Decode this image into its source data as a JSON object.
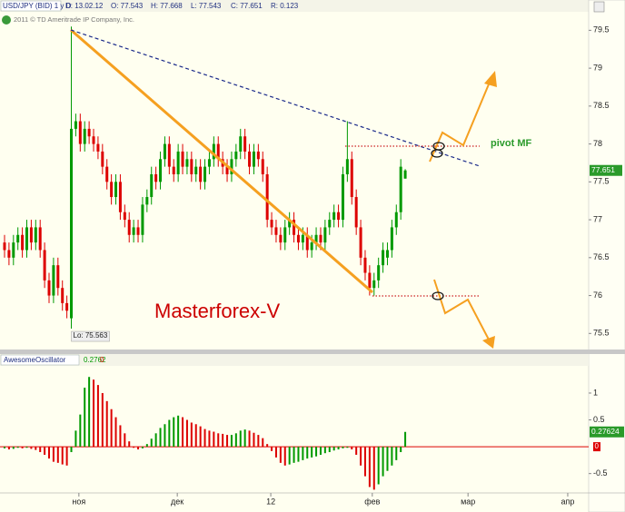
{
  "chart_data": [
    {
      "type": "candlestick",
      "header": [
        "USD/JPY (BID) 1 y D",
        "D: 13.02.12",
        "O: 77.543",
        "H: 77.668",
        "L: 77.543",
        "C: 77.651",
        "R: 0.123"
      ],
      "copyright": "2011 © TD Ameritrade IP Company, Inc.",
      "annotations": [
        "Masterforex-V",
        "pivot MF",
        "Lo: 75.563"
      ],
      "last_label": "77.651",
      "up_color": "#009900",
      "down_color": "#dd0000",
      "xlim": [
        -1.02,
        131.2
      ],
      "ylim": [
        75.3,
        79.72
      ],
      "yticks": [
        75.5,
        76,
        76.5,
        77,
        77.5,
        78,
        78.5,
        79,
        79.5
      ],
      "x": [
        0,
        1,
        2,
        3,
        4,
        5,
        6,
        7,
        8,
        9,
        10,
        11,
        12,
        13,
        14,
        15,
        16,
        17,
        18,
        19,
        20,
        21,
        22,
        23,
        24,
        25,
        26,
        27,
        28,
        29,
        30,
        31,
        32,
        33,
        34,
        35,
        36,
        37,
        38,
        39,
        40,
        41,
        42,
        43,
        44,
        45,
        46,
        47,
        48,
        49,
        50,
        51,
        52,
        53,
        54,
        55,
        56,
        57,
        58,
        59,
        60,
        61,
        62,
        63,
        64,
        65,
        66,
        67,
        68,
        69,
        70,
        71,
        72,
        73,
        74,
        75,
        76,
        77,
        78,
        79,
        80,
        81,
        82,
        83,
        84,
        85,
        86,
        87,
        88,
        89,
        90
      ],
      "open": [
        76.7,
        76.6,
        76.5,
        76.7,
        76.8,
        76.6,
        76.9,
        76.7,
        76.9,
        76.6,
        76.2,
        76.0,
        76.4,
        76.1,
        75.9,
        75.7,
        78.2,
        78.3,
        78.0,
        78.2,
        78.1,
        78.0,
        77.9,
        77.7,
        77.5,
        77.3,
        77.5,
        77.1,
        77.0,
        76.8,
        76.9,
        76.8,
        77.2,
        77.3,
        77.6,
        77.5,
        77.8,
        78.0,
        77.7,
        77.6,
        77.9,
        77.7,
        77.8,
        77.6,
        77.7,
        77.5,
        77.7,
        77.8,
        78.0,
        77.8,
        77.7,
        77.6,
        77.8,
        77.9,
        78.1,
        77.9,
        77.7,
        77.9,
        77.8,
        77.6,
        77.0,
        76.9,
        76.8,
        76.7,
        76.9,
        77.0,
        76.8,
        76.7,
        76.8,
        76.6,
        76.7,
        76.8,
        76.7,
        76.9,
        77.0,
        77.1,
        77.0,
        77.6,
        77.8,
        77.3,
        76.9,
        76.5,
        76.3,
        76.1,
        76.2,
        76.4,
        76.5,
        76.6,
        76.9,
        77.1,
        77.543
      ],
      "high": [
        76.8,
        76.7,
        76.8,
        76.9,
        76.9,
        77.0,
        77.0,
        77.0,
        77.0,
        76.7,
        76.3,
        76.5,
        76.5,
        76.2,
        76.0,
        79.55,
        78.4,
        78.4,
        78.3,
        78.3,
        78.2,
        78.1,
        78.0,
        77.8,
        77.6,
        77.6,
        77.6,
        77.2,
        77.1,
        77.0,
        77.0,
        77.3,
        77.4,
        77.7,
        77.7,
        77.9,
        78.1,
        78.1,
        77.8,
        78.0,
        78.0,
        77.9,
        77.9,
        77.8,
        77.8,
        77.8,
        77.9,
        78.1,
        78.1,
        77.9,
        77.8,
        77.9,
        78.0,
        78.2,
        78.2,
        78.0,
        78.0,
        78.0,
        77.9,
        77.7,
        77.1,
        77.0,
        76.9,
        77.0,
        77.1,
        77.1,
        76.9,
        76.9,
        76.9,
        76.8,
        76.9,
        76.9,
        77.0,
        77.1,
        77.2,
        77.2,
        77.7,
        78.3,
        77.9,
        77.4,
        77.0,
        76.6,
        76.4,
        76.3,
        76.5,
        76.7,
        76.7,
        77.0,
        77.2,
        77.8,
        77.668
      ],
      "low": [
        76.5,
        76.4,
        76.4,
        76.6,
        76.5,
        76.5,
        76.6,
        76.6,
        76.5,
        76.1,
        75.9,
        75.9,
        76.0,
        75.8,
        75.7,
        75.563,
        78.1,
        77.9,
        77.9,
        78.0,
        77.9,
        77.8,
        77.6,
        77.4,
        77.2,
        77.2,
        77.0,
        76.9,
        76.7,
        76.7,
        76.7,
        76.7,
        77.1,
        77.2,
        77.4,
        77.4,
        77.7,
        77.6,
        77.5,
        77.5,
        77.6,
        77.6,
        77.5,
        77.5,
        77.4,
        77.4,
        77.6,
        77.7,
        77.7,
        77.6,
        77.5,
        77.5,
        77.7,
        77.8,
        77.8,
        77.6,
        77.6,
        77.7,
        77.5,
        76.9,
        76.8,
        76.7,
        76.6,
        76.6,
        76.8,
        76.7,
        76.6,
        76.6,
        76.5,
        76.5,
        76.6,
        76.6,
        76.6,
        76.8,
        76.9,
        76.9,
        76.9,
        77.5,
        77.2,
        76.8,
        76.4,
        76.2,
        76.0,
        76.0,
        76.1,
        76.3,
        76.4,
        76.5,
        76.8,
        77.0,
        77.543
      ],
      "close": [
        76.6,
        76.5,
        76.7,
        76.8,
        76.6,
        76.9,
        76.7,
        76.9,
        76.6,
        76.2,
        76.0,
        76.4,
        76.1,
        75.9,
        75.8,
        78.2,
        78.3,
        78.0,
        78.2,
        78.1,
        78.0,
        77.9,
        77.7,
        77.5,
        77.3,
        77.5,
        77.1,
        77.0,
        76.8,
        76.9,
        76.8,
        77.2,
        77.3,
        77.6,
        77.5,
        77.8,
        78.0,
        77.7,
        77.6,
        77.9,
        77.7,
        77.8,
        77.6,
        77.7,
        77.5,
        77.7,
        77.8,
        78.0,
        77.8,
        77.7,
        77.6,
        77.8,
        77.9,
        78.1,
        77.9,
        77.7,
        77.9,
        77.8,
        77.6,
        77.0,
        76.9,
        76.8,
        76.7,
        76.9,
        77.0,
        76.8,
        76.7,
        76.8,
        76.6,
        76.7,
        76.8,
        76.7,
        76.9,
        77.0,
        77.1,
        77.0,
        77.6,
        77.8,
        77.3,
        76.9,
        76.5,
        76.3,
        76.1,
        76.2,
        76.4,
        76.6,
        76.6,
        76.9,
        77.1,
        77.7,
        77.651
      ]
    },
    {
      "type": "bar",
      "title": "AwesomeOscillator",
      "header_values": [
        "0.2762",
        "0"
      ],
      "last_label": "0.27624",
      "zero_label": "0",
      "up_color": "#009900",
      "down_color": "#dd0000",
      "xlim": [
        -1.02,
        131.2
      ],
      "ylim": [
        -0.81,
        1.49
      ],
      "yticks": [
        -0.5,
        0.5,
        1
      ],
      "xticks": [
        {
          "value": 16.7,
          "label": "ноя"
        },
        {
          "value": 38.8,
          "label": "дек"
        },
        {
          "value": 59.8,
          "label": "12"
        },
        {
          "value": 82.6,
          "label": "фев"
        },
        {
          "value": 104.1,
          "label": "мар"
        },
        {
          "value": 126.5,
          "label": "апр"
        }
      ],
      "x": [
        0,
        1,
        2,
        3,
        4,
        5,
        6,
        7,
        8,
        9,
        10,
        11,
        12,
        13,
        14,
        15,
        16,
        17,
        18,
        19,
        20,
        21,
        22,
        23,
        24,
        25,
        26,
        27,
        28,
        29,
        30,
        31,
        32,
        33,
        34,
        35,
        36,
        37,
        38,
        39,
        40,
        41,
        42,
        43,
        44,
        45,
        46,
        47,
        48,
        49,
        50,
        51,
        52,
        53,
        54,
        55,
        56,
        57,
        58,
        59,
        60,
        61,
        62,
        63,
        64,
        65,
        66,
        67,
        68,
        69,
        70,
        71,
        72,
        73,
        74,
        75,
        76,
        77,
        78,
        79,
        80,
        81,
        82,
        83,
        84,
        85,
        86,
        87,
        88,
        89,
        90
      ],
      "values": [
        -0.03,
        -0.05,
        -0.04,
        -0.02,
        -0.03,
        -0.02,
        -0.04,
        -0.06,
        -0.1,
        -0.15,
        -0.22,
        -0.28,
        -0.3,
        -0.33,
        -0.35,
        -0.1,
        0.3,
        0.6,
        1.1,
        1.3,
        1.25,
        1.15,
        1.0,
        0.85,
        0.7,
        0.55,
        0.4,
        0.25,
        0.1,
        -0.02,
        -0.05,
        -0.03,
        0.05,
        0.15,
        0.25,
        0.35,
        0.42,
        0.5,
        0.55,
        0.58,
        0.55,
        0.5,
        0.45,
        0.42,
        0.38,
        0.33,
        0.3,
        0.28,
        0.25,
        0.24,
        0.22,
        0.22,
        0.25,
        0.3,
        0.32,
        0.3,
        0.26,
        0.22,
        0.16,
        0.05,
        -0.08,
        -0.2,
        -0.3,
        -0.35,
        -0.33,
        -0.3,
        -0.28,
        -0.25,
        -0.22,
        -0.2,
        -0.18,
        -0.15,
        -0.12,
        -0.1,
        -0.07,
        -0.05,
        -0.03,
        -0.02,
        -0.05,
        -0.15,
        -0.35,
        -0.55,
        -0.75,
        -0.8,
        -0.7,
        -0.55,
        -0.45,
        -0.35,
        -0.25,
        -0.1,
        0.27624
      ]
    }
  ]
}
